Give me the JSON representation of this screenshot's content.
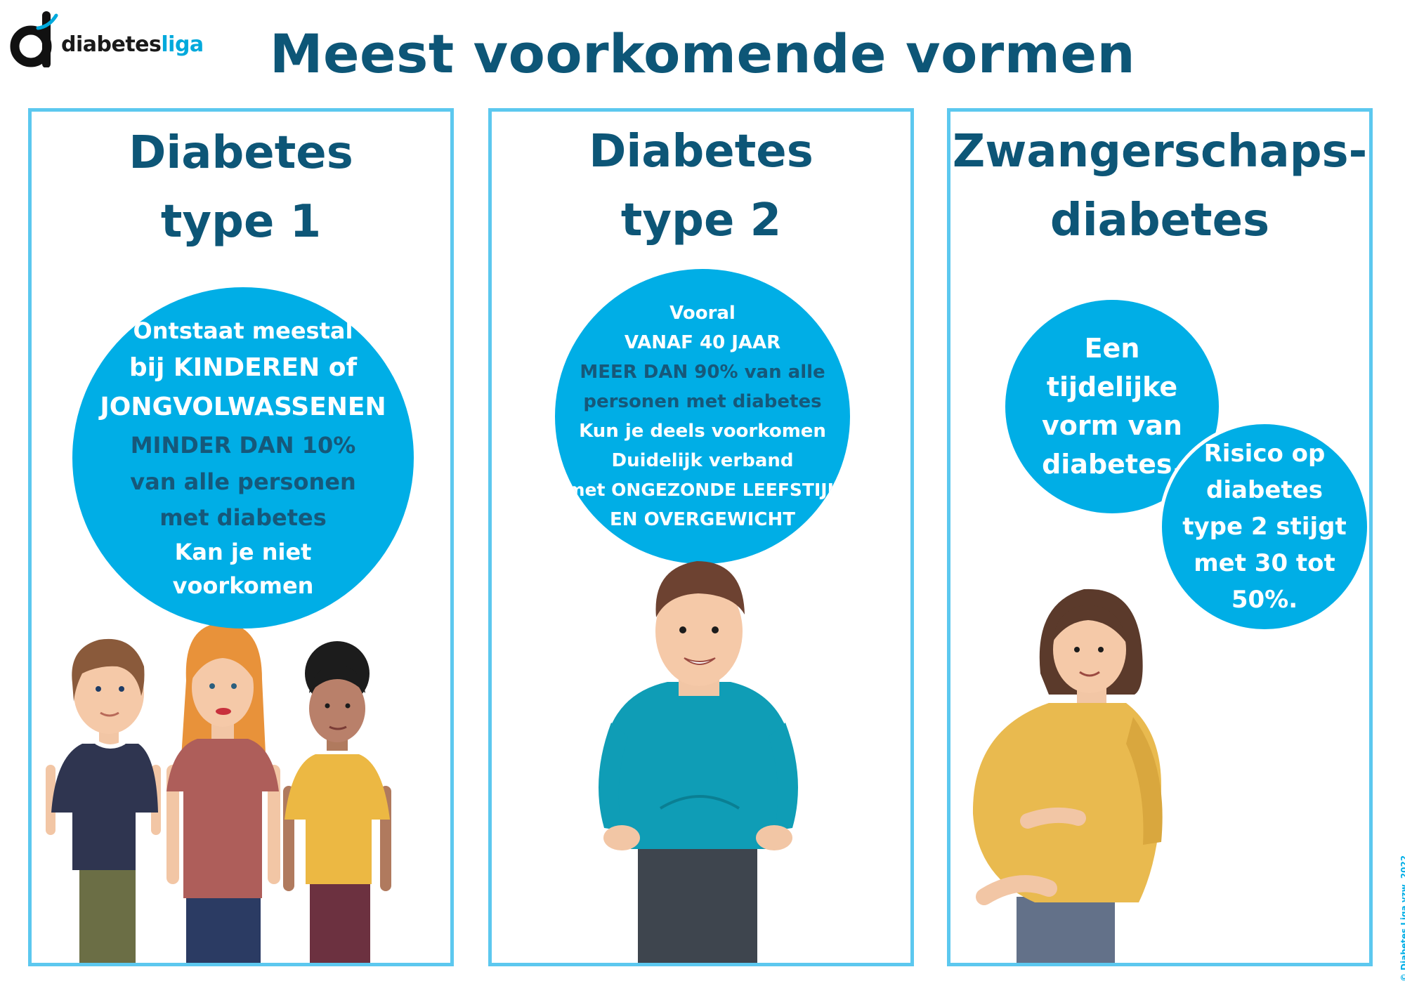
{
  "logo": {
    "brand_part1": "diabetes",
    "brand_part2": "liga"
  },
  "main_title": "Meest voorkomende vormen",
  "panels": [
    {
      "title_line1": "Diabetes",
      "title_line2": "type 1",
      "bubble_lines": [
        "Ontstaat meestal",
        "bij KINDEREN of",
        "JONGVOLWASSENEN",
        "MINDER DAN 10%",
        "van alle personen",
        "met diabetes",
        "Kan je niet",
        "voorkomen"
      ]
    },
    {
      "title_line1": "Diabetes",
      "title_line2": "type 2",
      "bubble_lines": [
        "Vooral",
        "VANAF 40 JAAR",
        "MEER DAN 90% van alle",
        "personen met diabetes",
        "Kun je deels voorkomen",
        "Duidelijk verband",
        "met ONGEZONDE LEEFSTIJL",
        "EN OVERGEWICHT"
      ]
    },
    {
      "title_line1": "Zwangerschaps-",
      "title_line2": "diabetes",
      "bubble1_lines": [
        "Een",
        "tijdelijke",
        "vorm van",
        "diabetes."
      ],
      "bubble2_lines": [
        "Risico op",
        "diabetes",
        "type 2 stijgt",
        "met 30 tot",
        "50%."
      ]
    }
  ],
  "copyright": "© Diabetes Liga vzw, 2022",
  "colors": {
    "title": "#0d5677",
    "bubble": "#00aee6",
    "border": "#5cc8ef",
    "dark_text": "#16587a"
  }
}
